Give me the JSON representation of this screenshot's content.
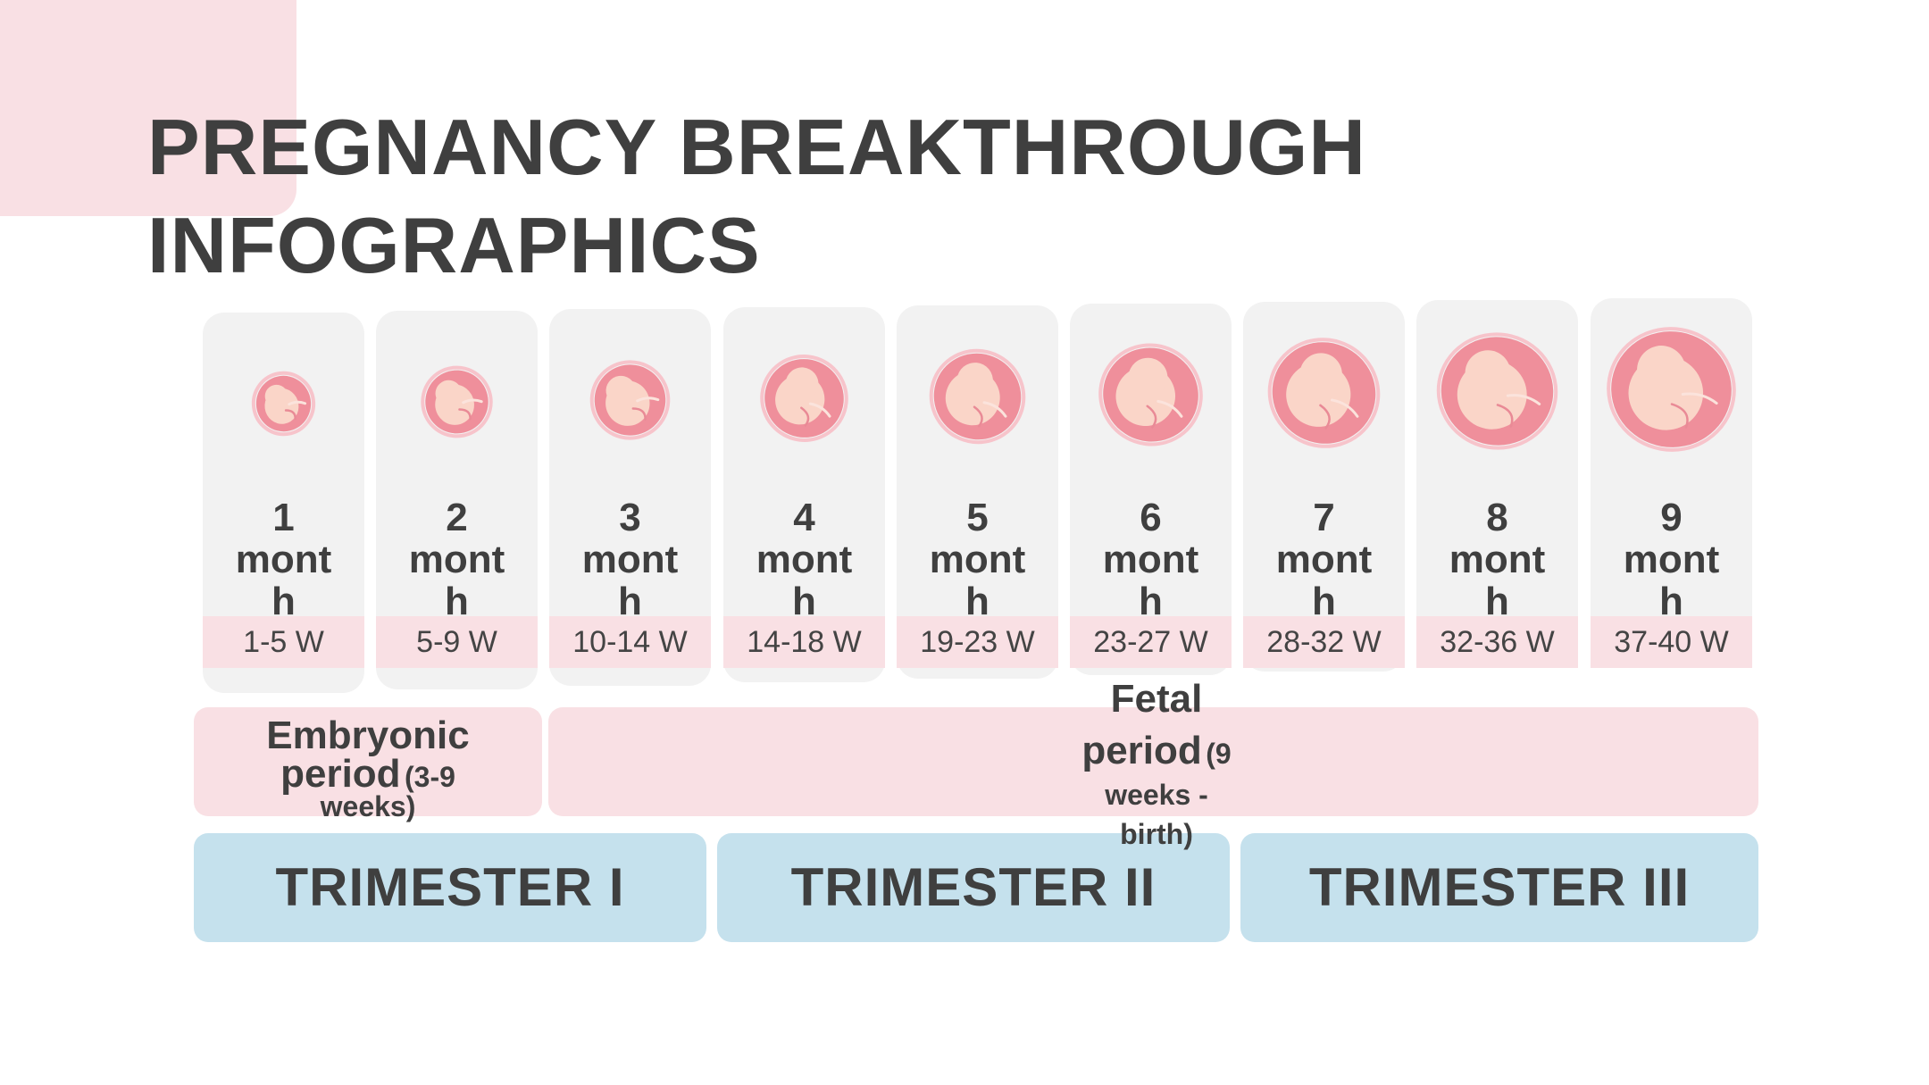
{
  "title": {
    "line1": "PREGNANCY BREAKTHROUGH",
    "line2": "INFOGRAPHICS"
  },
  "months": [
    {
      "number": "1",
      "unit1": "mont",
      "unit2": "h",
      "weeks": "1-5 W",
      "stage": 1
    },
    {
      "number": "2",
      "unit1": "mont",
      "unit2": "h",
      "weeks": "5-9 W",
      "stage": 2
    },
    {
      "number": "3",
      "unit1": "mont",
      "unit2": "h",
      "weeks": "10-14 W",
      "stage": 3
    },
    {
      "number": "4",
      "unit1": "mont",
      "unit2": "h",
      "weeks": "14-18 W",
      "stage": 4
    },
    {
      "number": "5",
      "unit1": "mont",
      "unit2": "h",
      "weeks": "19-23 W",
      "stage": 5
    },
    {
      "number": "6",
      "unit1": "mont",
      "unit2": "h",
      "weeks": "23-27 W",
      "stage": 6
    },
    {
      "number": "7",
      "unit1": "mont",
      "unit2": "h",
      "weeks": "28-32 W",
      "stage": 7
    },
    {
      "number": "8",
      "unit1": "mont",
      "unit2": "h",
      "weeks": "32-36 W",
      "stage": 8
    },
    {
      "number": "9",
      "unit1": "mont",
      "unit2": "h",
      "weeks": "37-40 W",
      "stage": 9
    }
  ],
  "periods": {
    "embryonic": {
      "line1": "Embryonic",
      "line2_big": "period",
      "line2_small": "(3-9",
      "line3": "weeks)"
    },
    "fetal": {
      "line1": "Fetal",
      "line2_big": "period",
      "line2_small": "(9",
      "line3": "weeks -",
      "line4": "birth)"
    }
  },
  "trimesters": [
    "TRIMESTER I",
    "TRIMESTER II",
    "TRIMESTER III"
  ],
  "colors": {
    "accent_pink": "#f9e0e4",
    "fetus_outer": "#ef8f9b",
    "fetus_body": "#fad5c8",
    "card_bg": "#f2f2f2",
    "trimester_blue": "#c5e1ed",
    "text": "#3f3f3f"
  },
  "icons": [
    "fetus-icon"
  ]
}
